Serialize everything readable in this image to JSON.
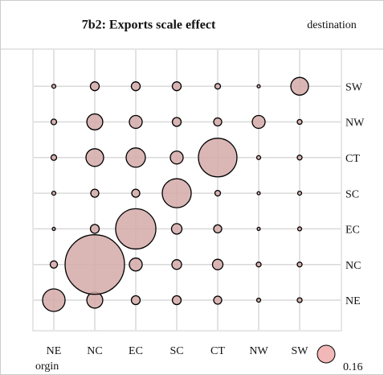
{
  "chart_data": {
    "type": "bubble",
    "title": "7b2: Exports scale effect",
    "x_label": "orgin",
    "y_label": "destination",
    "x": [
      "NE",
      "NC",
      "EC",
      "SC",
      "CT",
      "NW",
      "SW"
    ],
    "y": [
      "NE",
      "NC",
      "EC",
      "SC",
      "CT",
      "NW",
      "SW"
    ],
    "values": [
      [
        0.26,
        0.13,
        0.04,
        0.04,
        0.033,
        0.008,
        0.012
      ],
      [
        0.027,
        1.81,
        0.085,
        0.048,
        0.056,
        0.012,
        0.012
      ],
      [
        0.005,
        0.04,
        0.83,
        0.056,
        0.033,
        0.005,
        0.008
      ],
      [
        0.008,
        0.033,
        0.033,
        0.43,
        0.016,
        0.005,
        0.008
      ],
      [
        0.016,
        0.16,
        0.19,
        0.085,
        0.76,
        0.008,
        0.012
      ],
      [
        0.016,
        0.13,
        0.085,
        0.04,
        0.033,
        0.085,
        0.012
      ],
      [
        0.008,
        0.04,
        0.04,
        0.04,
        0.016,
        0.005,
        0.16
      ]
    ],
    "color": "#d4a9a8",
    "size_legend": {
      "value": 0.16,
      "color": "#f2b8b8"
    }
  }
}
